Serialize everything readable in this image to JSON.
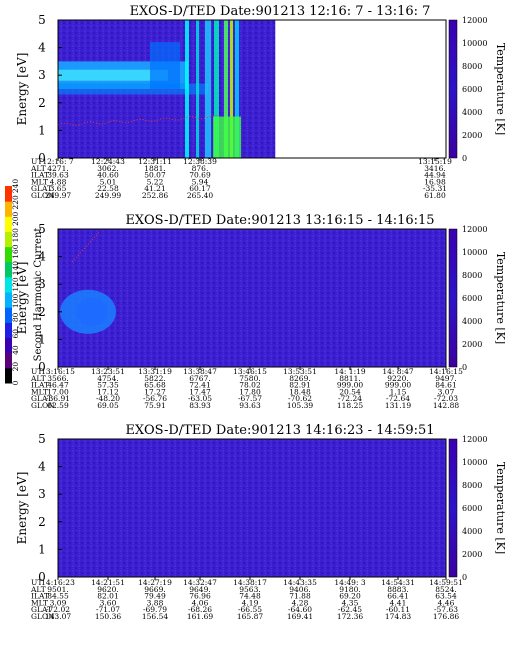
{
  "chart_data": [
    {
      "type": "heatmap",
      "title": "EXOS-D/TED   Date:901213  12:16: 7 - 13:16: 7",
      "ylabel": "Energy [eV]",
      "ylim": [
        0,
        5
      ],
      "yticks": [
        "0",
        "1",
        "2",
        "3",
        "4",
        "5"
      ],
      "colorbar_label": "Temperature [K]",
      "colorbar_ticks": [
        "0",
        "2000",
        "4000",
        "6000",
        "8000",
        "10000",
        "12000"
      ],
      "data_coverage_fraction": 0.56,
      "ephemeris": {
        "rows": [
          "UT",
          "ALT",
          "ILAT",
          "MLT",
          "GLAT",
          "GLON"
        ],
        "columns": [
          [
            "12:16: 7",
            "4271.",
            "39.63",
            "4.88",
            "3.65",
            "249.97"
          ],
          [
            "12:24:43",
            "3062.",
            "40.60",
            "5.01",
            "22.58",
            "249.99"
          ],
          [
            "12:31:11",
            "1881.",
            "50.07",
            "5.22",
            "41.21",
            "252.86"
          ],
          [
            "12:38:39",
            "876.",
            "70.69",
            "5.94",
            "60.17",
            "265.40"
          ],
          [
            "13:15:19",
            "3416.",
            "44.94",
            "16.98",
            "-35.31",
            "61.80"
          ]
        ]
      }
    },
    {
      "type": "heatmap",
      "title": "EXOS-D/TED   Date:901213  13:16:15 - 14:16:15",
      "ylabel": "Energy [eV]",
      "ylim": [
        0,
        5
      ],
      "yticks": [
        "0",
        "1",
        "2",
        "3",
        "4",
        "5"
      ],
      "colorbar_label": "Temperature [K]",
      "colorbar_ticks": [
        "0",
        "2000",
        "4000",
        "6000",
        "8000",
        "10000",
        "12000"
      ],
      "ephemeris": {
        "rows": [
          "UT",
          "ALT",
          "ILAT",
          "MLT",
          "GLAT",
          "GLON"
        ],
        "columns": [
          [
            "13:16:15",
            "3566.",
            "46.47",
            "17.00",
            "-36.91",
            "62.59"
          ],
          [
            "13:23:51",
            "4754.",
            "57.35",
            "17.12",
            "-48.20",
            "69.05"
          ],
          [
            "13:31:19",
            "5822.",
            "65.68",
            "17.27",
            "-56.76",
            "75.91"
          ],
          [
            "13:38:47",
            "6767.",
            "72.41",
            "17.47",
            "-63.05",
            "83.93"
          ],
          [
            "13:46:15",
            "7580.",
            "78.02",
            "17.80",
            "-67.57",
            "93.63"
          ],
          [
            "13:53:51",
            "8269.",
            "82.91",
            "18.48",
            "-70.62",
            "105.39"
          ],
          [
            "14: 1:19",
            "8811.",
            "999.00",
            "20.54",
            "-72.24",
            "118.25"
          ],
          [
            "14: 8:47",
            "9220.",
            "999.00",
            "1.15",
            "-72.64",
            "131.19"
          ],
          [
            "14:16:15",
            "9497.",
            "84.61",
            "3.07",
            "-72.03",
            "142.88"
          ]
        ]
      }
    },
    {
      "type": "heatmap",
      "title": "EXOS-D/TED   Date:901213  14:16:23 - 14:59:51",
      "ylabel": "Energy [eV]",
      "ylim": [
        0,
        5
      ],
      "yticks": [
        "0",
        "1",
        "2",
        "3",
        "4",
        "5"
      ],
      "colorbar_label": "Temperature [K]",
      "colorbar_ticks": [
        "0",
        "2000",
        "4000",
        "6000",
        "8000",
        "10000",
        "12000"
      ],
      "ephemeris": {
        "rows": [
          "UT",
          "ALT",
          "ILAT",
          "MLT",
          "GLAT",
          "GLON"
        ],
        "columns": [
          [
            "14:16:23",
            "9501.",
            "84.55",
            "3.09",
            "-72.02",
            "143.07"
          ],
          [
            "14:21:51",
            "9620.",
            "82.01",
            "3.60",
            "-71.07",
            "150.36"
          ],
          [
            "14:27:19",
            "9669.",
            "79.49",
            "3.88",
            "-69.79",
            "156.54"
          ],
          [
            "14:32:47",
            "9649.",
            "76.96",
            "4.06",
            "-68.26",
            "161.69"
          ],
          [
            "14:38:17",
            "9563.",
            "74.48",
            "4.19",
            "-66.55",
            "165.87"
          ],
          [
            "14:43:35",
            "9406.",
            "71.88",
            "4.28",
            "-64.60",
            "169.41"
          ],
          [
            "14:49: 3",
            "9180.",
            "69.20",
            "4.35",
            "-62.45",
            "172.36"
          ],
          [
            "14:54:31",
            "8883.",
            "66.41",
            "4.41",
            "-60.11",
            "174.83"
          ],
          [
            "14:59:51",
            "8524.",
            "63.54",
            "4.46",
            "-57.63",
            "176.86"
          ]
        ]
      }
    }
  ],
  "side_legend": {
    "label": "Second Harmonic Current",
    "ticks": [
      "0",
      "20",
      "40",
      "60",
      "80",
      "100",
      "120",
      "140",
      "160",
      "180",
      "200",
      "220",
      "240"
    ],
    "colors": [
      "#000000",
      "#5a0078",
      "#3a00b4",
      "#1e1ee6",
      "#0064ff",
      "#00b4ff",
      "#00e6e6",
      "#00c864",
      "#32dc00",
      "#b4f000",
      "#ffff00",
      "#ffb400",
      "#ff3200"
    ]
  }
}
